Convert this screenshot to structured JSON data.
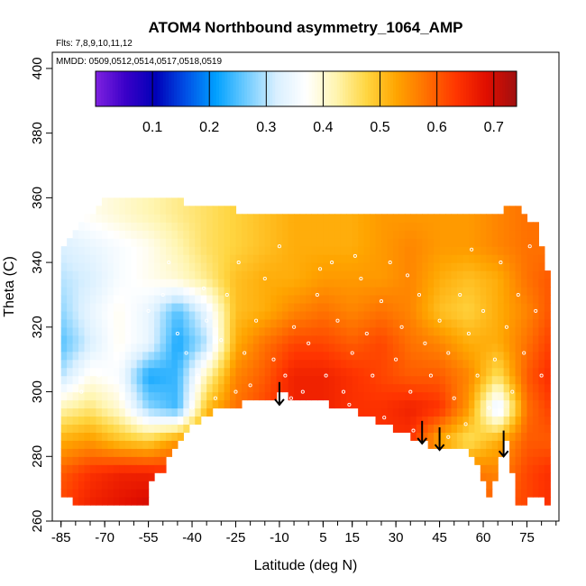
{
  "chart_data": {
    "type": "heatmap",
    "title": "ATOM4 Northbound asymmetry_1064_AMP",
    "subtitle_flights": "Flts: 7,8,9,10,11,12",
    "subtitle_dates": "MMDD: 0509,0512,0514,0517,0518,0519",
    "xlabel": "Latitude (deg N)",
    "ylabel": "Theta (C)",
    "xlim": [
      -88,
      86
    ],
    "ylim": [
      260,
      405
    ],
    "x_ticks": [
      -85,
      -70,
      -55,
      -40,
      -25,
      -10,
      5,
      15,
      30,
      45,
      60,
      75
    ],
    "y_ticks": [
      260,
      280,
      300,
      320,
      340,
      360,
      380,
      400
    ],
    "colorbar": {
      "ticks": [
        0.1,
        0.2,
        0.3,
        0.4,
        0.5,
        0.6,
        0.7
      ],
      "range": [
        0.0,
        0.74
      ],
      "colors": [
        "#7f22e0",
        "#3a00c8",
        "#0000b8",
        "#0050e6",
        "#00a0ff",
        "#6ecbff",
        "#d8efff",
        "#ffffff",
        "#fff5b0",
        "#ffd642",
        "#ffa500",
        "#ff7000",
        "#ff3500",
        "#e00e00",
        "#a01010"
      ]
    },
    "domain_top": [
      [
        -85,
        344
      ],
      [
        -78,
        352
      ],
      [
        -70,
        360
      ],
      [
        -60,
        361
      ],
      [
        -45,
        359
      ],
      [
        -30,
        357
      ],
      [
        -15,
        355
      ],
      [
        0,
        355
      ],
      [
        15,
        355
      ],
      [
        28,
        355
      ],
      [
        40,
        355
      ],
      [
        53,
        355
      ],
      [
        60,
        355
      ],
      [
        65,
        356
      ],
      [
        72,
        357
      ],
      [
        78,
        352
      ],
      [
        82,
        338
      ]
    ],
    "domain_bottom": [
      [
        -85,
        298
      ],
      [
        -84,
        268
      ],
      [
        -80,
        265
      ],
      [
        -70,
        265
      ],
      [
        -55,
        265
      ],
      [
        -54,
        272
      ],
      [
        -50,
        276
      ],
      [
        -45,
        284
      ],
      [
        -40,
        290
      ],
      [
        -30,
        295
      ],
      [
        -20,
        297
      ],
      [
        -10,
        299
      ],
      [
        0,
        298
      ],
      [
        5,
        297
      ],
      [
        12,
        295
      ],
      [
        22,
        292
      ],
      [
        30,
        288
      ],
      [
        38,
        285
      ],
      [
        44,
        283
      ],
      [
        50,
        283
      ],
      [
        55,
        282
      ],
      [
        58,
        278
      ],
      [
        62,
        268
      ],
      [
        65,
        276
      ],
      [
        68,
        285
      ],
      [
        72,
        265
      ],
      [
        78,
        268
      ],
      [
        82,
        265
      ]
    ],
    "grid_values": {
      "lats": [
        -85,
        -75,
        -65,
        -55,
        -45,
        -35,
        -25,
        -15,
        -5,
        5,
        15,
        25,
        35,
        45,
        55,
        65,
        75,
        82
      ],
      "thetas": [
        265,
        275,
        285,
        295,
        305,
        315,
        325,
        335,
        345,
        355
      ],
      "values": [
        [
          0.62,
          0.66,
          0.68,
          0.7,
          0.68,
          0.64,
          0.62,
          0.62,
          0.62,
          0.64,
          0.64,
          0.64,
          0.64,
          0.64,
          0.6,
          0.6,
          0.62,
          0.64
        ],
        [
          0.6,
          0.64,
          0.66,
          0.66,
          0.64,
          0.62,
          0.62,
          0.62,
          0.62,
          0.64,
          0.64,
          0.64,
          0.64,
          0.64,
          0.58,
          0.56,
          0.62,
          0.64
        ],
        [
          0.52,
          0.54,
          0.5,
          0.48,
          0.54,
          0.58,
          0.6,
          0.62,
          0.64,
          0.64,
          0.64,
          0.64,
          0.64,
          0.52,
          0.46,
          0.52,
          0.6,
          0.6
        ],
        [
          0.42,
          0.45,
          0.4,
          0.28,
          0.24,
          0.5,
          0.58,
          0.62,
          0.66,
          0.66,
          0.64,
          0.64,
          0.66,
          0.64,
          0.54,
          0.32,
          0.58,
          0.62
        ],
        [
          0.3,
          0.38,
          0.36,
          0.22,
          0.24,
          0.42,
          0.56,
          0.6,
          0.66,
          0.66,
          0.64,
          0.62,
          0.6,
          0.6,
          0.56,
          0.46,
          0.6,
          0.64
        ],
        [
          0.25,
          0.32,
          0.38,
          0.34,
          0.22,
          0.3,
          0.52,
          0.58,
          0.62,
          0.62,
          0.6,
          0.62,
          0.58,
          0.56,
          0.52,
          0.52,
          0.58,
          0.62
        ],
        [
          0.28,
          0.34,
          0.38,
          0.34,
          0.25,
          0.34,
          0.5,
          0.52,
          0.56,
          0.58,
          0.56,
          0.58,
          0.56,
          0.5,
          0.48,
          0.52,
          0.56,
          0.6
        ],
        [
          0.3,
          0.32,
          0.36,
          0.38,
          0.4,
          0.44,
          0.5,
          0.52,
          0.52,
          0.54,
          0.54,
          0.54,
          0.56,
          0.52,
          0.5,
          0.52,
          0.58,
          0.6
        ],
        [
          0.32,
          0.34,
          0.36,
          0.38,
          0.42,
          0.46,
          0.48,
          0.5,
          0.52,
          0.52,
          0.52,
          0.54,
          0.56,
          0.54,
          0.54,
          0.56,
          0.58,
          0.58
        ],
        [
          0.36,
          0.38,
          0.4,
          0.42,
          0.44,
          0.46,
          0.48,
          0.5,
          0.52,
          0.52,
          0.52,
          0.54,
          0.54,
          0.54,
          0.54,
          0.56,
          0.58,
          0.58
        ]
      ]
    },
    "arrows": [
      {
        "lat": -10,
        "theta_top": 303,
        "theta_tip": 296
      },
      {
        "lat": 39,
        "theta_top": 291,
        "theta_tip": 284
      },
      {
        "lat": 45,
        "theta_top": 289,
        "theta_tip": 282
      },
      {
        "lat": 67,
        "theta_top": 288,
        "theta_tip": 280
      }
    ],
    "markers": [
      [
        -78,
        300
      ],
      [
        -72,
        305
      ],
      [
        -66,
        310
      ],
      [
        -62,
        318
      ],
      [
        -55,
        325
      ],
      [
        -50,
        330
      ],
      [
        -45,
        318
      ],
      [
        -42,
        312
      ],
      [
        -38,
        305
      ],
      [
        -35,
        322
      ],
      [
        -30,
        316
      ],
      [
        -28,
        330
      ],
      [
        -25,
        300
      ],
      [
        -22,
        312
      ],
      [
        -18,
        322
      ],
      [
        -15,
        335
      ],
      [
        -12,
        310
      ],
      [
        -8,
        305
      ],
      [
        -5,
        320
      ],
      [
        -2,
        300
      ],
      [
        0,
        315
      ],
      [
        3,
        330
      ],
      [
        6,
        305
      ],
      [
        8,
        340
      ],
      [
        10,
        322
      ],
      [
        12,
        300
      ],
      [
        15,
        312
      ],
      [
        18,
        335
      ],
      [
        20,
        318
      ],
      [
        22,
        305
      ],
      [
        25,
        328
      ],
      [
        28,
        340
      ],
      [
        30,
        310
      ],
      [
        32,
        320
      ],
      [
        35,
        300
      ],
      [
        38,
        330
      ],
      [
        40,
        315
      ],
      [
        42,
        305
      ],
      [
        45,
        322
      ],
      [
        48,
        312
      ],
      [
        50,
        298
      ],
      [
        52,
        330
      ],
      [
        55,
        318
      ],
      [
        58,
        305
      ],
      [
        60,
        325
      ],
      [
        62,
        295
      ],
      [
        64,
        310
      ],
      [
        66,
        340
      ],
      [
        68,
        320
      ],
      [
        70,
        300
      ],
      [
        72,
        330
      ],
      [
        74,
        312
      ],
      [
        76,
        345
      ],
      [
        78,
        325
      ],
      [
        80,
        305
      ],
      [
        -52,
        274
      ],
      [
        -40,
        295
      ],
      [
        -32,
        298
      ],
      [
        -20,
        302
      ],
      [
        -6,
        298
      ],
      [
        2,
        296
      ],
      [
        14,
        296
      ],
      [
        26,
        292
      ],
      [
        36,
        288
      ],
      [
        48,
        286
      ],
      [
        54,
        290
      ],
      [
        -60,
        336
      ],
      [
        -48,
        340
      ],
      [
        -36,
        332
      ],
      [
        -24,
        340
      ],
      [
        -10,
        345
      ],
      [
        4,
        338
      ],
      [
        16,
        342
      ],
      [
        34,
        336
      ],
      [
        56,
        344
      ]
    ]
  }
}
